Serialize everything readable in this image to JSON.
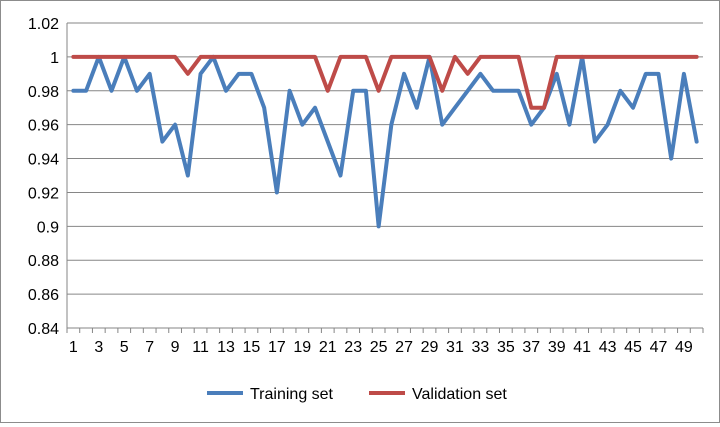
{
  "chart_data": {
    "type": "line",
    "title": "",
    "xlabel": "",
    "ylabel": "",
    "x": [
      1,
      2,
      3,
      4,
      5,
      6,
      7,
      8,
      9,
      10,
      11,
      12,
      13,
      14,
      15,
      16,
      17,
      18,
      19,
      20,
      21,
      22,
      23,
      24,
      25,
      26,
      27,
      28,
      29,
      30,
      31,
      32,
      33,
      34,
      35,
      36,
      37,
      38,
      39,
      40,
      41,
      42,
      43,
      44,
      45,
      46,
      47,
      48,
      49,
      50
    ],
    "x_tick_labels": [
      "1",
      "3",
      "5",
      "7",
      "9",
      "11",
      "13",
      "15",
      "17",
      "19",
      "21",
      "23",
      "25",
      "27",
      "29",
      "31",
      "33",
      "35",
      "37",
      "39",
      "41",
      "43",
      "45",
      "47",
      "49"
    ],
    "ylim": [
      0.84,
      1.02
    ],
    "y_ticks": [
      0.84,
      0.86,
      0.88,
      0.9,
      0.92,
      0.94,
      0.96,
      0.98,
      1,
      1.02
    ],
    "y_tick_labels": [
      "0.84",
      "0.86",
      "0.88",
      "0.9",
      "0.92",
      "0.94",
      "0.96",
      "0.98",
      "1",
      "1.02"
    ],
    "grid": "horizontal",
    "legend_position": "bottom",
    "series": [
      {
        "name": "Training set",
        "color": "#4a7ebb",
        "values": [
          0.98,
          0.98,
          1,
          0.98,
          1,
          0.98,
          0.99,
          0.95,
          0.96,
          0.93,
          0.99,
          1,
          0.98,
          0.99,
          0.99,
          0.97,
          0.92,
          0.98,
          0.96,
          0.97,
          0.95,
          0.93,
          0.98,
          0.98,
          0.9,
          0.96,
          0.99,
          0.97,
          1,
          0.96,
          0.97,
          0.98,
          0.99,
          0.98,
          0.98,
          0.98,
          0.96,
          0.97,
          0.99,
          0.96,
          1,
          0.95,
          0.96,
          0.98,
          0.97,
          0.99,
          0.99,
          0.94,
          0.99,
          0.95
        ]
      },
      {
        "name": "Validation set",
        "color": "#be4b48",
        "values": [
          1,
          1,
          1,
          1,
          1,
          1,
          1,
          1,
          1,
          0.99,
          1,
          1,
          1,
          1,
          1,
          1,
          1,
          1,
          1,
          1,
          0.98,
          1,
          1,
          1,
          0.98,
          1,
          1,
          1,
          1,
          0.98,
          1,
          0.99,
          1,
          1,
          1,
          1,
          0.97,
          0.97,
          1,
          1,
          1,
          1,
          1,
          1,
          1,
          1,
          1,
          1,
          1,
          1
        ]
      }
    ]
  }
}
